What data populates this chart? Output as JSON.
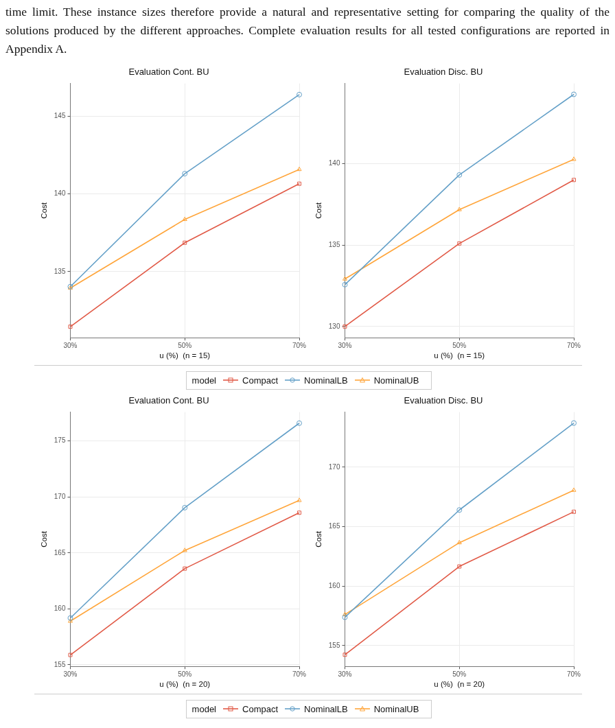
{
  "chart_data": [
    {
      "type": "line",
      "title": "Evaluation Cont. BU",
      "xlabel": "u (%)  (n = 15)",
      "ylabel": "Cost",
      "annotations": [
        "time limit. These instance sizes therefore provide a natural and representative setting for comparing the quality of the solutions produced by the different approaches. Complete evaluation results for all tested configurations are reported in Appendix A."
      ],
      "categories": [
        "30%",
        "50%",
        "70%"
      ],
      "ylim": [
        130.74,
        147.12
      ],
      "yticks": [
        135,
        140,
        145
      ],
      "grid": true,
      "legend": "bottom",
      "legend_title": "model",
      "series": [
        {
          "name": "Compact",
          "color": "#e15a47",
          "marker": "square",
          "values": [
            131.45,
            136.86,
            140.66
          ]
        },
        {
          "name": "NominalLB",
          "color": "#64a0c8",
          "marker": "circle",
          "values": [
            134.03,
            141.31,
            146.4
          ]
        },
        {
          "name": "NominalUB",
          "color": "#ffa53a",
          "marker": "triangle",
          "values": [
            133.94,
            138.36,
            141.58
          ]
        }
      ]
    },
    {
      "type": "line",
      "title": "Evaluation Disc. BU",
      "xlabel": "u (%)  (n = 15)",
      "ylabel": "Cost",
      "categories": [
        "30%",
        "50%",
        "70%"
      ],
      "ylim": [
        129.31,
        144.93
      ],
      "yticks": [
        130,
        135,
        140
      ],
      "grid": true,
      "series": [
        {
          "color": "#e15a47",
          "marker": "square",
          "values": [
            130.0,
            135.1,
            139.0
          ]
        },
        {
          "color": "#64a0c8",
          "marker": "circle",
          "values": [
            132.57,
            139.31,
            144.26
          ]
        },
        {
          "color": "#ffa53a",
          "marker": "triangle",
          "values": [
            132.92,
            137.18,
            140.27
          ]
        }
      ]
    },
    {
      "type": "line",
      "title": "Evaluation Cont. BU",
      "xlabel": "u (%)  (n = 20)",
      "ylabel": "Cost",
      "categories": [
        "30%",
        "50%",
        "70%"
      ],
      "ylim": [
        154.86,
        177.58
      ],
      "yticks": [
        155,
        160,
        165,
        170,
        175
      ],
      "grid": true,
      "legend": "bottom",
      "legend_title": "model",
      "series": [
        {
          "name": "Compact",
          "color": "#e15a47",
          "marker": "square",
          "values": [
            155.88,
            163.6,
            168.59
          ]
        },
        {
          "name": "NominalLB",
          "color": "#64a0c8",
          "marker": "circle",
          "values": [
            159.18,
            169.04,
            176.59
          ]
        },
        {
          "name": "NominalUB",
          "color": "#ffa53a",
          "marker": "triangle",
          "values": [
            158.9,
            165.22,
            169.69
          ]
        }
      ]
    },
    {
      "type": "line",
      "title": "Evaluation Disc. BU",
      "xlabel": "u (%)  (n = 20)",
      "ylabel": "Cost",
      "categories": [
        "30%",
        "50%",
        "70%"
      ],
      "ylim": [
        153.25,
        174.63
      ],
      "yticks": [
        155,
        160,
        165,
        170
      ],
      "grid": true,
      "series": [
        {
          "color": "#e15a47",
          "marker": "square",
          "values": [
            154.23,
            161.65,
            166.25
          ]
        },
        {
          "color": "#64a0c8",
          "marker": "circle",
          "values": [
            157.38,
            166.4,
            173.71
          ]
        },
        {
          "color": "#ffa53a",
          "marker": "triangle",
          "values": [
            157.61,
            163.65,
            168.06
          ]
        }
      ]
    }
  ]
}
